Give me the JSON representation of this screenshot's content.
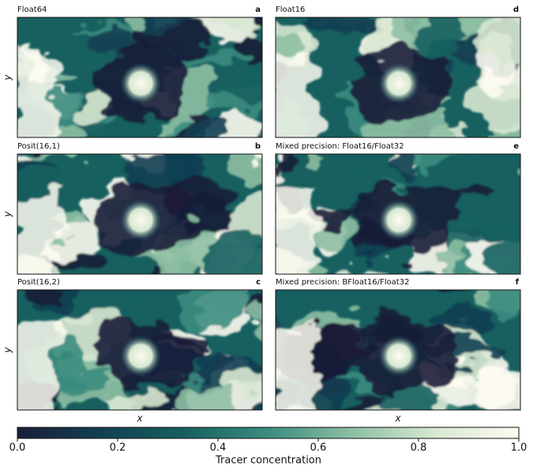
{
  "chart_data": {
    "type": "heatmap",
    "panels": [
      {
        "title": "Float64",
        "letter": "a"
      },
      {
        "title": "Posit(16,1)",
        "letter": "b"
      },
      {
        "title": "Posit(16,2)",
        "letter": "c"
      },
      {
        "title": "Float16",
        "letter": "d"
      },
      {
        "title": "Mixed precision: Float16/Float32",
        "letter": "e"
      },
      {
        "title": "Mixed precision: BFloat16/Float32",
        "letter": "f"
      }
    ],
    "xlabel": "x",
    "ylabel": "y",
    "colorbar": {
      "label": "Tracer concentration",
      "lim": [
        0,
        1
      ],
      "ticks": [
        {
          "value": 0,
          "label": "0.0"
        },
        0.2,
        0.4,
        0.6,
        0.8,
        {
          "value": 1,
          "label": "1.0"
        }
      ],
      "colors": [
        "#1a1d38",
        "#123f52",
        "#17605f",
        "#3b8c80",
        "#8dbfa3",
        "#d8e8d2",
        "#fdfbf1"
      ]
    }
  }
}
